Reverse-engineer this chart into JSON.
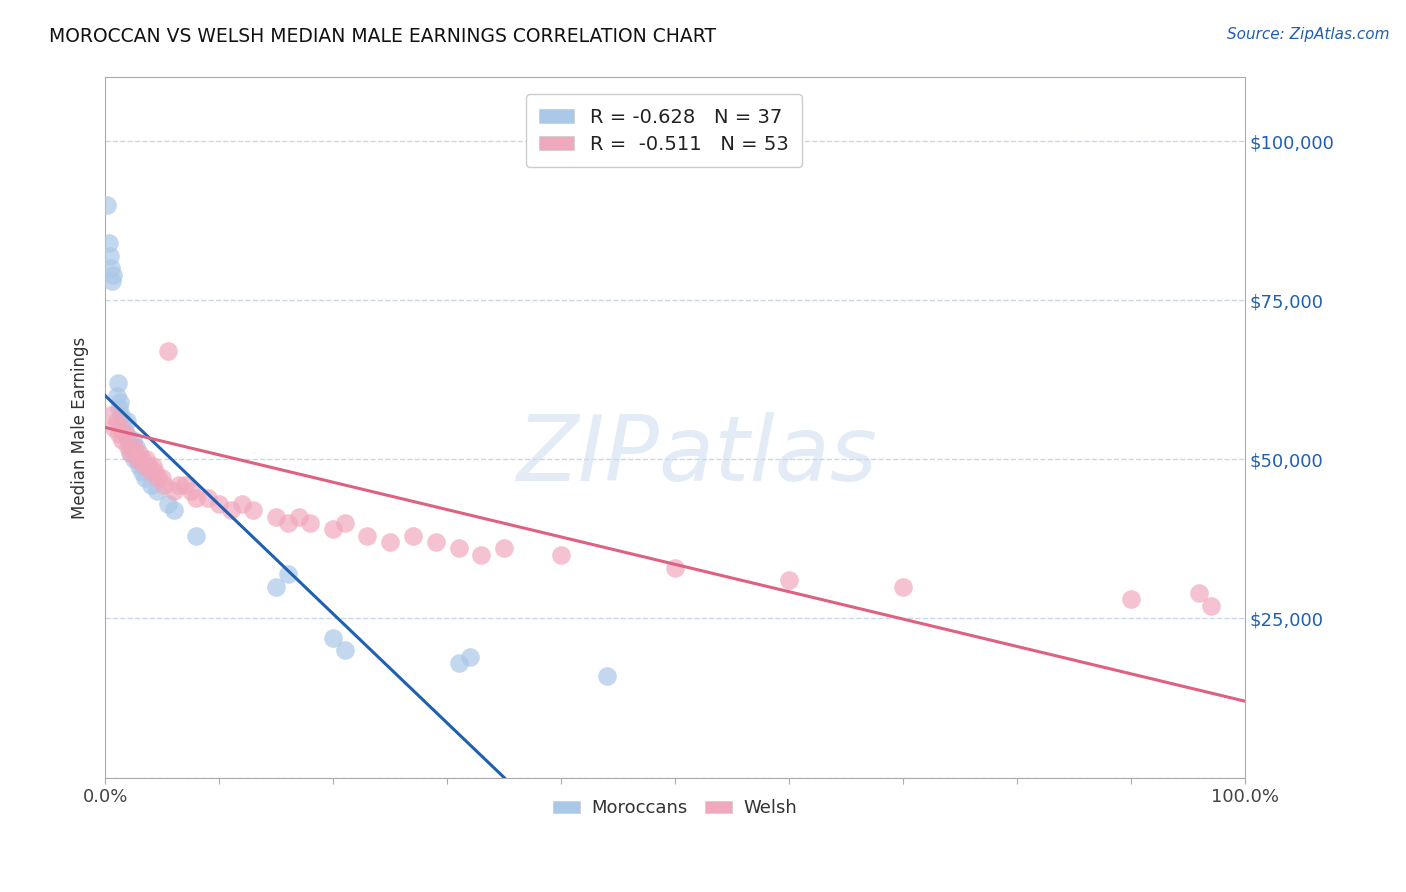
{
  "title": "MOROCCAN VS WELSH MEDIAN MALE EARNINGS CORRELATION CHART",
  "source": "Source: ZipAtlas.com",
  "ylabel": "Median Male Earnings",
  "xlim": [
    0,
    1.0
  ],
  "ylim": [
    0,
    110000
  ],
  "yticks": [
    0,
    25000,
    50000,
    75000,
    100000
  ],
  "ytick_labels": [
    "",
    "$25,000",
    "$50,000",
    "$75,000",
    "$100,000"
  ],
  "xticks": [
    0.0,
    0.1,
    0.2,
    0.3,
    0.4,
    0.5,
    0.6,
    0.7,
    0.8,
    0.9,
    1.0
  ],
  "xtick_labels": [
    "0.0%",
    "",
    "",
    "",
    "",
    "",
    "",
    "",
    "",
    "",
    "100.0%"
  ],
  "bg_color": "#ffffff",
  "grid_color": "#c8d8ea",
  "moroccan_color": "#aac8e8",
  "moroccan_line_color": "#2060b0",
  "welsh_color": "#f0a8bc",
  "welsh_line_color": "#e06080",
  "legend_moroccan_label": "R = -0.628   N = 37",
  "legend_welsh_label": "R =  -0.511   N = 53",
  "watermark": "ZIPatlas",
  "moroccan_line": [
    [
      0.0,
      60000
    ],
    [
      0.35,
      0
    ]
  ],
  "welsh_line": [
    [
      0.0,
      55000
    ],
    [
      1.0,
      12000
    ]
  ],
  "moroccan_points": [
    [
      0.002,
      90000
    ],
    [
      0.003,
      84000
    ],
    [
      0.004,
      82000
    ],
    [
      0.005,
      80000
    ],
    [
      0.006,
      78000
    ],
    [
      0.007,
      79000
    ],
    [
      0.01,
      60000
    ],
    [
      0.011,
      62000
    ],
    [
      0.012,
      58000
    ],
    [
      0.013,
      59000
    ],
    [
      0.014,
      57000
    ],
    [
      0.015,
      56000
    ],
    [
      0.016,
      55000
    ],
    [
      0.018,
      54000
    ],
    [
      0.019,
      56000
    ],
    [
      0.02,
      53000
    ],
    [
      0.022,
      52000
    ],
    [
      0.023,
      51000
    ],
    [
      0.024,
      53000
    ],
    [
      0.025,
      50000
    ],
    [
      0.027,
      52000
    ],
    [
      0.028,
      50000
    ],
    [
      0.03,
      49000
    ],
    [
      0.032,
      48000
    ],
    [
      0.035,
      47000
    ],
    [
      0.04,
      46000
    ],
    [
      0.045,
      45000
    ],
    [
      0.055,
      43000
    ],
    [
      0.06,
      42000
    ],
    [
      0.08,
      38000
    ],
    [
      0.15,
      30000
    ],
    [
      0.16,
      32000
    ],
    [
      0.2,
      22000
    ],
    [
      0.21,
      20000
    ],
    [
      0.31,
      18000
    ],
    [
      0.32,
      19000
    ],
    [
      0.44,
      16000
    ]
  ],
  "welsh_points": [
    [
      0.005,
      57000
    ],
    [
      0.008,
      55000
    ],
    [
      0.01,
      56000
    ],
    [
      0.012,
      54000
    ],
    [
      0.014,
      55000
    ],
    [
      0.015,
      53000
    ],
    [
      0.018,
      54000
    ],
    [
      0.02,
      52000
    ],
    [
      0.022,
      51000
    ],
    [
      0.025,
      52000
    ],
    [
      0.028,
      50000
    ],
    [
      0.03,
      51000
    ],
    [
      0.032,
      50000
    ],
    [
      0.034,
      49000
    ],
    [
      0.036,
      50000
    ],
    [
      0.038,
      49000
    ],
    [
      0.04,
      48000
    ],
    [
      0.042,
      49000
    ],
    [
      0.044,
      48000
    ],
    [
      0.046,
      47000
    ],
    [
      0.05,
      47000
    ],
    [
      0.052,
      46000
    ],
    [
      0.055,
      67000
    ],
    [
      0.06,
      45000
    ],
    [
      0.065,
      46000
    ],
    [
      0.07,
      46000
    ],
    [
      0.075,
      45000
    ],
    [
      0.08,
      44000
    ],
    [
      0.09,
      44000
    ],
    [
      0.1,
      43000
    ],
    [
      0.11,
      42000
    ],
    [
      0.12,
      43000
    ],
    [
      0.13,
      42000
    ],
    [
      0.15,
      41000
    ],
    [
      0.16,
      40000
    ],
    [
      0.17,
      41000
    ],
    [
      0.18,
      40000
    ],
    [
      0.2,
      39000
    ],
    [
      0.21,
      40000
    ],
    [
      0.23,
      38000
    ],
    [
      0.25,
      37000
    ],
    [
      0.27,
      38000
    ],
    [
      0.29,
      37000
    ],
    [
      0.31,
      36000
    ],
    [
      0.33,
      35000
    ],
    [
      0.35,
      36000
    ],
    [
      0.4,
      35000
    ],
    [
      0.5,
      33000
    ],
    [
      0.6,
      31000
    ],
    [
      0.7,
      30000
    ],
    [
      0.9,
      28000
    ],
    [
      0.96,
      29000
    ],
    [
      0.97,
      27000
    ]
  ]
}
